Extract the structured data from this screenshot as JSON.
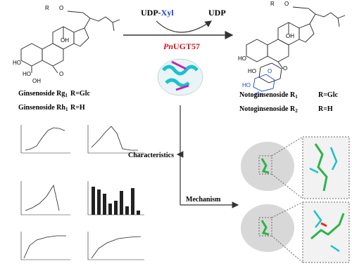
{
  "reaction": {
    "donor": "UDP-",
    "donor_sugar": "Xyl",
    "product": "UDP",
    "enzyme_prefix": "Pn",
    "enzyme": "UGT57"
  },
  "substrates": [
    {
      "name": "Ginsenoside Rg",
      "sub": "1",
      "r": "R=Glc"
    },
    {
      "name": "Ginsenoside Rh",
      "sub": "1",
      "r": "R=H"
    }
  ],
  "products": [
    {
      "name": "Notoginsenoside R",
      "sub": "1",
      "r": "R=Glc"
    },
    {
      "name": "Notoginsenoside R",
      "sub": "2",
      "r": "R=H"
    }
  ],
  "branches": {
    "characteristics": "Characteristics",
    "mechanism": "Mechanism"
  },
  "left_atoms": [
    "R",
    "O",
    "OH",
    "HO",
    "HO",
    "OH",
    "O"
  ],
  "right_atoms": [
    "R",
    "O",
    "OH",
    "HO",
    "O",
    "HO",
    "HO",
    "O",
    "OH"
  ]
}
